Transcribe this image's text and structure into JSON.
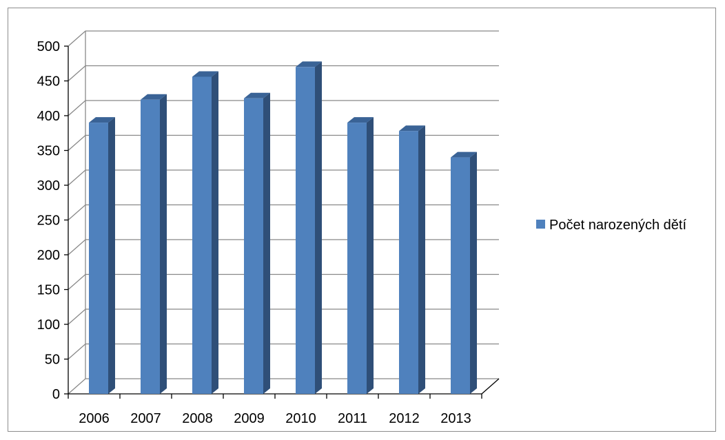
{
  "chart_data": {
    "type": "bar",
    "style": "3d-column",
    "categories": [
      "2006",
      "2007",
      "2008",
      "2009",
      "2010",
      "2011",
      "2012",
      "2013"
    ],
    "series": [
      {
        "name": "Počet narozených dětí",
        "values": [
          390,
          423,
          456,
          425,
          470,
          390,
          378,
          340
        ],
        "color": "#4f81bd"
      }
    ],
    "ylim": [
      0,
      500
    ],
    "yticks": [
      "0",
      "50",
      "100",
      "150",
      "200",
      "250",
      "300",
      "350",
      "400",
      "450",
      "500"
    ],
    "grid": true,
    "legend": "right"
  },
  "colors": {
    "bar_front": "#4f81bd",
    "bar_side": "#2f4f78",
    "bar_top": "#3a6396",
    "grid": "#888888",
    "axis": "#000000"
  }
}
